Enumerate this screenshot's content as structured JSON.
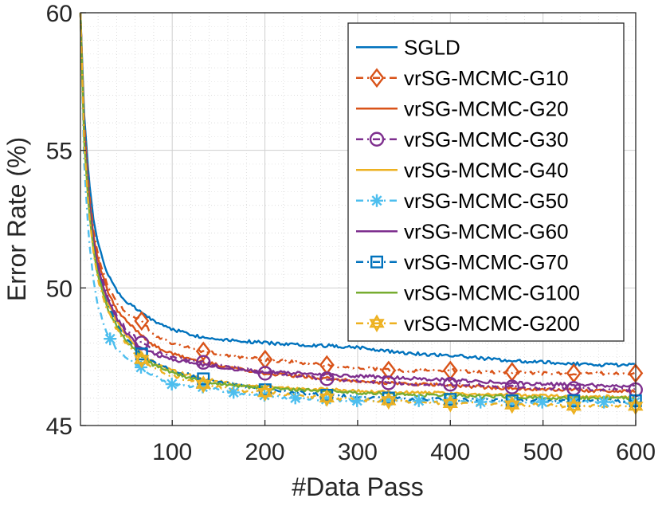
{
  "chart_data": {
    "type": "line",
    "title": "",
    "xlabel": "#Data Pass",
    "ylabel": "Error Rate (%)",
    "xlim": [
      1,
      600
    ],
    "ylim": [
      45,
      60
    ],
    "xticks": [
      100,
      200,
      300,
      400,
      500,
      600
    ],
    "yticks": [
      45,
      50,
      55,
      60
    ],
    "grid": true,
    "legend_position": "top-right",
    "x": [
      1,
      5,
      10,
      15,
      20,
      30,
      40,
      50,
      67,
      80,
      100,
      133,
      167,
      200,
      233,
      267,
      300,
      333,
      367,
      400,
      433,
      467,
      500,
      533,
      567,
      600
    ],
    "series": [
      {
        "name": "SGLD",
        "color": "#0072BD",
        "dash": "",
        "marker": "none",
        "values": [
          60,
          56.3,
          54.0,
          52.5,
          51.6,
          50.5,
          49.9,
          49.5,
          49.1,
          48.8,
          48.5,
          48.2,
          48.1,
          48.0,
          47.95,
          47.9,
          47.85,
          47.7,
          47.6,
          47.55,
          47.45,
          47.35,
          47.3,
          47.25,
          47.2,
          47.2
        ]
      },
      {
        "name": "vrSG-MCMC-G10",
        "color": "#D95319",
        "dash": "9 5 2 5",
        "marker": "diamond",
        "values": [
          60,
          56.0,
          53.6,
          52.1,
          51.2,
          50.1,
          49.5,
          49.1,
          48.8,
          48.3,
          48.0,
          47.7,
          47.5,
          47.4,
          47.3,
          47.2,
          47.1,
          47.0,
          47.0,
          47.0,
          46.95,
          46.95,
          46.9,
          46.9,
          46.9,
          46.9
        ]
      },
      {
        "name": "vrSG-MCMC-G20",
        "color": "#D95319",
        "dash": "",
        "marker": "none",
        "values": [
          60,
          55.8,
          53.4,
          51.9,
          51.0,
          49.9,
          49.2,
          48.8,
          48.3,
          47.9,
          47.6,
          47.3,
          47.1,
          46.9,
          46.8,
          46.7,
          46.6,
          46.55,
          46.5,
          46.45,
          46.4,
          46.35,
          46.3,
          46.3,
          46.25,
          46.25
        ]
      },
      {
        "name": "vrSG-MCMC-G30",
        "color": "#7E2F8E",
        "dash": "9 5 2 5",
        "marker": "circle",
        "values": [
          60,
          55.6,
          53.2,
          51.7,
          50.8,
          49.7,
          49.0,
          48.5,
          48.0,
          47.7,
          47.5,
          47.3,
          47.1,
          46.9,
          46.8,
          46.7,
          46.6,
          46.55,
          46.5,
          46.5,
          46.45,
          46.4,
          46.35,
          46.35,
          46.3,
          46.3
        ]
      },
      {
        "name": "vrSG-MCMC-G40",
        "color": "#EDB120",
        "dash": "",
        "marker": "none",
        "values": [
          60,
          55.5,
          53.1,
          51.6,
          50.6,
          49.5,
          48.8,
          48.3,
          47.6,
          47.3,
          47.0,
          46.7,
          46.5,
          46.4,
          46.35,
          46.3,
          46.25,
          46.2,
          46.2,
          46.15,
          46.15,
          46.1,
          46.1,
          46.05,
          46.05,
          46.0
        ]
      },
      {
        "name": "vrSG-MCMC-G50",
        "color": "#4DBEEE",
        "dash": "9 5 2 5",
        "marker": "asterisk",
        "values": [
          60,
          54.5,
          51.8,
          50.3,
          49.3,
          48.3,
          47.8,
          47.5,
          47.1,
          46.8,
          46.5,
          46.4,
          46.2,
          46.1,
          46.0,
          45.95,
          45.9,
          45.9,
          45.9,
          45.9,
          45.85,
          45.85,
          45.85,
          45.85,
          45.85,
          45.85
        ]
      },
      {
        "name": "vrSG-MCMC-G60",
        "color": "#7E2F8E",
        "dash": "",
        "marker": "none",
        "values": [
          60,
          55.6,
          53.2,
          51.7,
          50.7,
          49.6,
          48.9,
          48.4,
          47.8,
          47.6,
          47.4,
          47.2,
          47.05,
          46.95,
          46.9,
          46.85,
          46.8,
          46.75,
          46.7,
          46.65,
          46.6,
          46.55,
          46.5,
          46.5,
          46.45,
          46.45
        ]
      },
      {
        "name": "vrSG-MCMC-G70",
        "color": "#0072BD",
        "dash": "9 5 2 5",
        "marker": "square",
        "values": [
          60,
          55.4,
          53.0,
          51.5,
          50.5,
          49.4,
          48.7,
          48.2,
          47.6,
          47.3,
          47.0,
          46.7,
          46.5,
          46.3,
          46.2,
          46.1,
          46.05,
          46.0,
          45.95,
          45.95,
          45.95,
          45.9,
          45.9,
          45.9,
          45.9,
          45.9
        ]
      },
      {
        "name": "vrSG-MCMC-G100",
        "color": "#77AC30",
        "dash": "",
        "marker": "none",
        "values": [
          60,
          55.3,
          52.9,
          51.4,
          50.4,
          49.3,
          48.6,
          48.1,
          47.5,
          47.2,
          46.9,
          46.6,
          46.45,
          46.35,
          46.3,
          46.25,
          46.2,
          46.15,
          46.1,
          46.1,
          46.05,
          46.05,
          46.0,
          46.0,
          46.0,
          46.0
        ]
      },
      {
        "name": "vrSG-MCMC-G200",
        "color": "#EDB120",
        "dash": "9 5 2 5",
        "marker": "hexagram",
        "values": [
          60,
          55.2,
          52.8,
          51.3,
          50.3,
          49.2,
          48.5,
          48.0,
          47.4,
          47.1,
          46.8,
          46.5,
          46.3,
          46.2,
          46.1,
          46.0,
          45.95,
          45.9,
          45.85,
          45.8,
          45.8,
          45.75,
          45.75,
          45.7,
          45.7,
          45.7
        ]
      }
    ]
  }
}
